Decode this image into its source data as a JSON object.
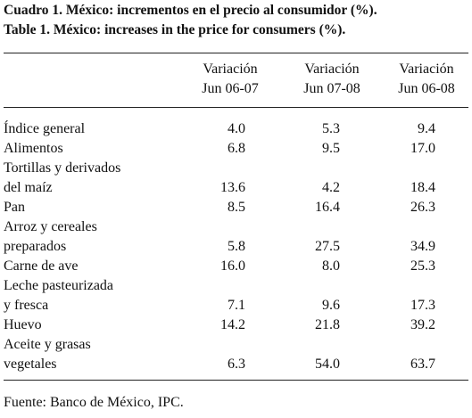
{
  "header": {
    "title_lines": [
      "Cuadro 1. México: incrementos en el precio al consumidor (%).",
      "Table 1. México: increases in the price for consumers (%)."
    ]
  },
  "table": {
    "columns": [
      [
        "Variación",
        "Jun 06-07"
      ],
      [
        "Variación",
        "Jun 07-08"
      ],
      [
        "Variación",
        "Jun 06-08"
      ]
    ],
    "rows": [
      {
        "label": [
          "Índice general"
        ],
        "values": [
          "4.0",
          "5.3",
          "9.4"
        ]
      },
      {
        "label": [
          "Alimentos"
        ],
        "values": [
          "6.8",
          "9.5",
          "17.0"
        ]
      },
      {
        "label": [
          "Tortillas y derivados",
          "del maíz"
        ],
        "values": [
          "13.6",
          "4.2",
          "18.4"
        ]
      },
      {
        "label": [
          "Pan"
        ],
        "values": [
          "8.5",
          "16.4",
          "26.3"
        ]
      },
      {
        "label": [
          "Arroz y cereales",
          "preparados"
        ],
        "values": [
          "5.8",
          "27.5",
          "34.9"
        ]
      },
      {
        "label": [
          "Carne de ave"
        ],
        "values": [
          "16.0",
          "8.0",
          "25.3"
        ]
      },
      {
        "label": [
          "Leche pasteurizada",
          "y fresca"
        ],
        "values": [
          "7.1",
          "9.6",
          "17.3"
        ]
      },
      {
        "label": [
          "Huevo"
        ],
        "values": [
          "14.2",
          "21.8",
          "39.2"
        ]
      },
      {
        "label": [
          "Aceite y grasas",
          "vegetales"
        ],
        "values": [
          "6.3",
          "54.0",
          "63.7"
        ]
      }
    ]
  },
  "footer": {
    "source": "Fuente: Banco de México, IPC."
  }
}
